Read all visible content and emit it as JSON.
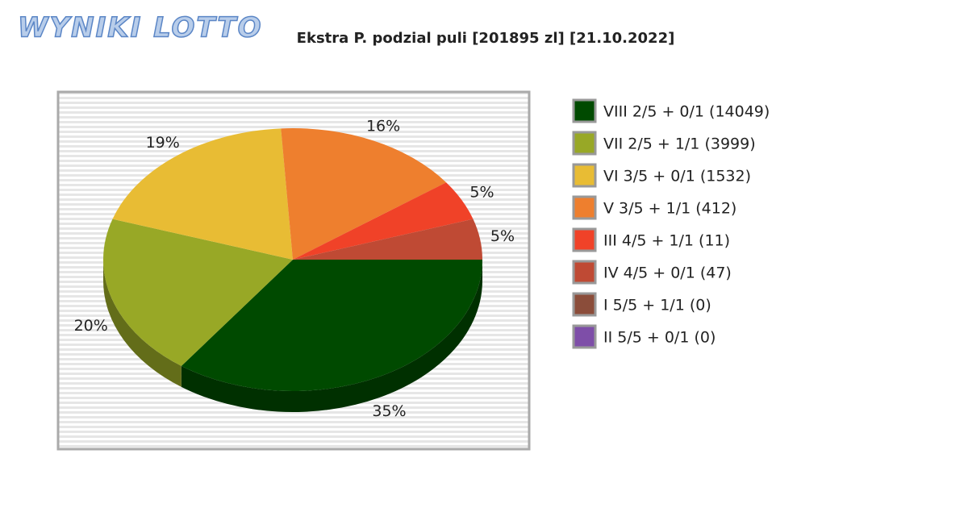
{
  "logo": "WYNIKI LOTTO",
  "chart_data": {
    "type": "pie",
    "title": "Ekstra P. podzial puli [201895 zl] [21.10.2022]",
    "categories": [
      "VIII 2/5 + 0/1 (14049)",
      "VII 2/5 + 1/1 (3999)",
      "VI 3/5 + 0/1 (1532)",
      "V 3/5 + 1/1 (412)",
      "III 4/5 + 1/1 (11)",
      "IV 4/5 + 0/1 (47)",
      "I 5/5 + 1/1 (0)",
      "II 5/5 + 0/1 (0)"
    ],
    "values": [
      35,
      20,
      19,
      16,
      5,
      5,
      0,
      0
    ],
    "value_labels": [
      "35%",
      "20%",
      "19%",
      "16%",
      "5%",
      "5%",
      null,
      null
    ],
    "colors": [
      "#004a00",
      "#98a826",
      "#e8bc34",
      "#ee7f2e",
      "#f04228",
      "#bf4a34",
      "#8b4d3a",
      "#7e4ea8"
    ],
    "legend": "right"
  }
}
